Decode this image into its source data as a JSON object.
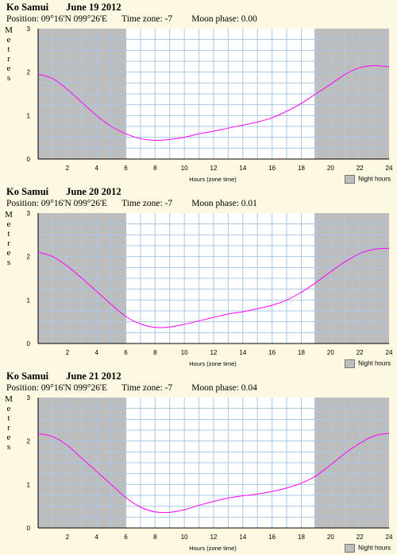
{
  "chart_data": [
    {
      "type": "line",
      "location": "Ko Samui",
      "date": "June 19 2012",
      "position": "Position: 09°16'N 099°26'E",
      "time_zone": "Time zone: -7",
      "moon_phase": "Moon phase: 0.00",
      "ylabel": "Metres",
      "xlabel": "Hours (zone time)",
      "legend": "Night hours",
      "xlim": [
        0,
        24
      ],
      "ylim": [
        0,
        3
      ],
      "xticks": [
        2,
        4,
        6,
        8,
        10,
        12,
        14,
        16,
        18,
        20,
        22,
        24
      ],
      "yticks": [
        0,
        1,
        2,
        3
      ],
      "night": [
        [
          0,
          6.0
        ],
        [
          18.9,
          24
        ]
      ],
      "series": [
        {
          "x": [
            0,
            1,
            2,
            3,
            4,
            5,
            6,
            7,
            8,
            9,
            10,
            11,
            12,
            13,
            14,
            15,
            16,
            17,
            18,
            19,
            20,
            21,
            22,
            23,
            24
          ],
          "values": [
            1.95,
            1.85,
            1.6,
            1.3,
            1.0,
            0.75,
            0.58,
            0.47,
            0.43,
            0.45,
            0.5,
            0.58,
            0.64,
            0.71,
            0.78,
            0.85,
            0.95,
            1.1,
            1.28,
            1.5,
            1.72,
            1.95,
            2.1,
            2.15,
            2.12
          ]
        }
      ]
    },
    {
      "type": "line",
      "location": "Ko Samui",
      "date": "June 20 2012",
      "position": "Position: 09°16'N 099°26'E",
      "time_zone": "Time zone: -7",
      "moon_phase": "Moon phase: 0.01",
      "ylabel": "Metres",
      "xlabel": "Hours (zone time)",
      "legend": "Night hours",
      "xlim": [
        0,
        24
      ],
      "ylim": [
        0,
        3
      ],
      "xticks": [
        2,
        4,
        6,
        8,
        10,
        12,
        14,
        16,
        18,
        20,
        22,
        24
      ],
      "yticks": [
        0,
        1,
        2,
        3
      ],
      "night": [
        [
          0,
          6.0
        ],
        [
          18.9,
          24
        ]
      ],
      "series": [
        {
          "x": [
            0,
            1,
            2,
            3,
            4,
            5,
            6,
            7,
            8,
            9,
            10,
            11,
            12,
            13,
            14,
            15,
            16,
            17,
            18,
            19,
            20,
            21,
            22,
            23,
            24
          ],
          "values": [
            2.1,
            2.0,
            1.78,
            1.5,
            1.2,
            0.9,
            0.62,
            0.45,
            0.37,
            0.38,
            0.44,
            0.52,
            0.6,
            0.68,
            0.73,
            0.8,
            0.88,
            1.0,
            1.18,
            1.4,
            1.65,
            1.88,
            2.07,
            2.17,
            2.19
          ]
        }
      ]
    },
    {
      "type": "line",
      "location": "Ko Samui",
      "date": "June 21 2012",
      "position": "Position: 09°16'N 099°26'E",
      "time_zone": "Time zone: -7",
      "moon_phase": "Moon phase: 0.04",
      "ylabel": "Metres",
      "xlabel": "Hours (zone time)",
      "legend": "Night hours",
      "xlim": [
        0,
        24
      ],
      "ylim": [
        0,
        3
      ],
      "xticks": [
        2,
        4,
        6,
        8,
        10,
        12,
        14,
        16,
        18,
        20,
        22,
        24
      ],
      "yticks": [
        0,
        1,
        2,
        3
      ],
      "night": [
        [
          0,
          6.0
        ],
        [
          18.9,
          24
        ]
      ],
      "series": [
        {
          "x": [
            0,
            1,
            2,
            3,
            4,
            5,
            6,
            7,
            8,
            9,
            10,
            11,
            12,
            13,
            14,
            15,
            16,
            17,
            18,
            19,
            20,
            21,
            22,
            23,
            24
          ],
          "values": [
            2.17,
            2.1,
            1.9,
            1.6,
            1.3,
            1.0,
            0.7,
            0.48,
            0.37,
            0.36,
            0.42,
            0.52,
            0.61,
            0.69,
            0.74,
            0.78,
            0.84,
            0.92,
            1.03,
            1.2,
            1.45,
            1.72,
            1.95,
            2.12,
            2.18
          ]
        }
      ]
    }
  ],
  "colors": {
    "background": "#fdf8e1",
    "night_fill": "#bdbdbd",
    "day_fill": "#ffffff",
    "grid": "#a9c8e8",
    "curve": "#ff00ff",
    "axis": "#000000"
  }
}
